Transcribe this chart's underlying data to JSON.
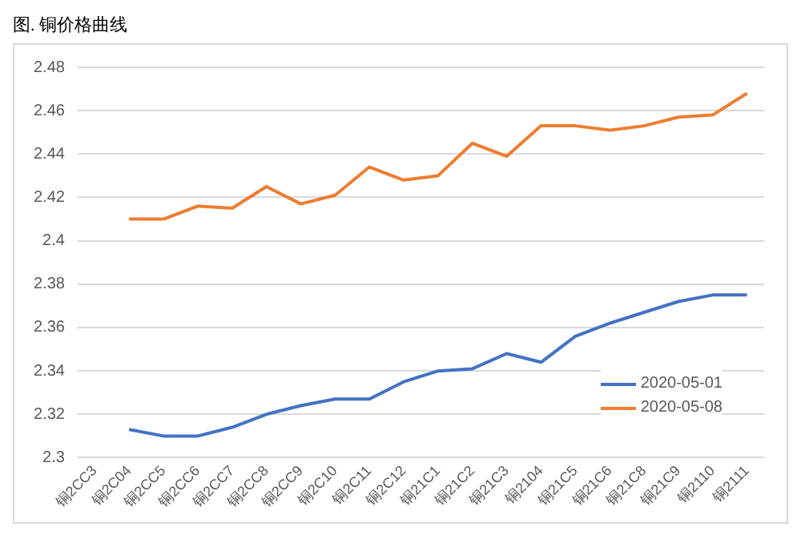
{
  "chart_data": {
    "type": "line",
    "title": "图. 铜价格曲线",
    "categories": [
      "铜2CC3",
      "铜2C04",
      "铜2CC5",
      "铜2CC6",
      "铜2CC7",
      "铜2CC8",
      "铜2CC9",
      "铜2C10",
      "铜2C11",
      "铜2C12",
      "铜21C1",
      "铜21C2",
      "铜21C3",
      "铜2104",
      "铜21C5",
      "铜21C6",
      "铜21C8",
      "铜21C9",
      "铜2110",
      "铜2111"
    ],
    "series": [
      {
        "name": "2020-05-01",
        "color": "#4472c4",
        "values": [
          null,
          2.313,
          2.31,
          2.31,
          2.314,
          2.32,
          2.324,
          2.327,
          2.327,
          2.335,
          2.34,
          2.341,
          2.348,
          2.344,
          2.356,
          2.362,
          2.367,
          2.372,
          2.375,
          2.375
        ]
      },
      {
        "name": "2020-05-08",
        "color": "#ed7d31",
        "values": [
          null,
          2.41,
          2.41,
          2.416,
          2.415,
          2.425,
          2.417,
          2.421,
          2.434,
          2.428,
          2.43,
          2.445,
          2.439,
          2.453,
          2.453,
          2.451,
          2.453,
          2.457,
          2.458,
          2.468
        ]
      }
    ],
    "ylim": [
      2.3,
      2.48
    ],
    "yticks": [
      2.3,
      2.32,
      2.34,
      2.36,
      2.38,
      2.4,
      2.42,
      2.44,
      2.46,
      2.48
    ],
    "grid": "y",
    "legend": "bottom right",
    "marker": "none",
    "line_style": "solid"
  }
}
